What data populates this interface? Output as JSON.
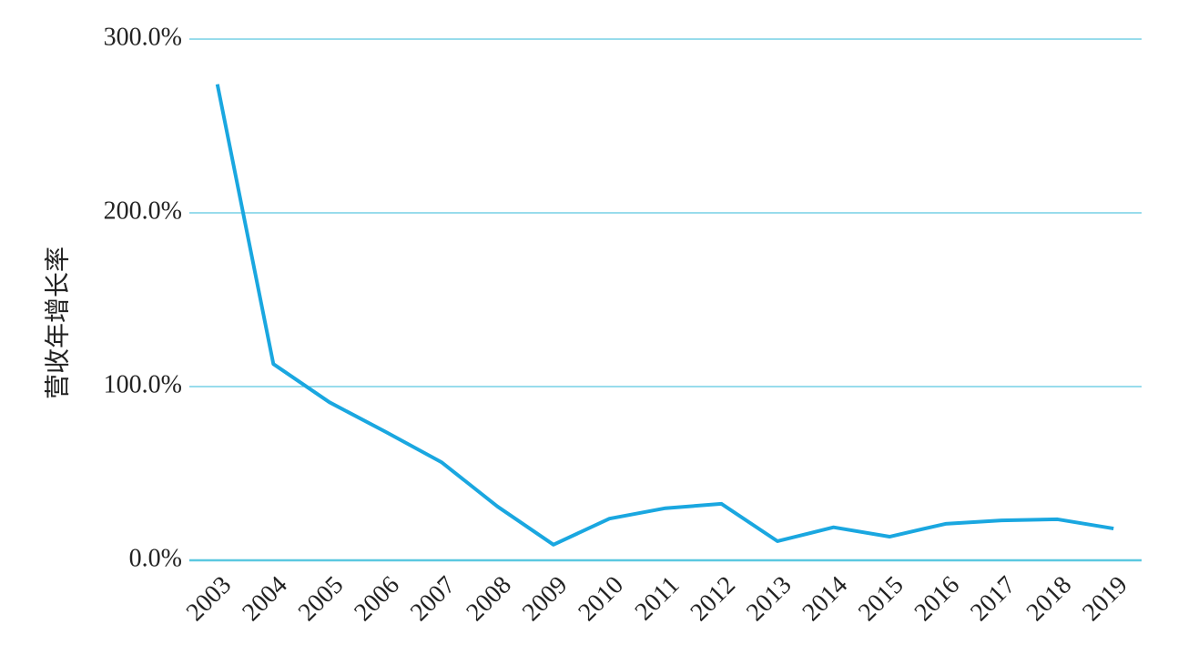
{
  "chart_data": {
    "type": "line",
    "y_label": "营收年增长率",
    "categories": [
      "2003",
      "2004",
      "2005",
      "2006",
      "2007",
      "2008",
      "2009",
      "2010",
      "2011",
      "2012",
      "2013",
      "2014",
      "2015",
      "2016",
      "2017",
      "2018",
      "2019"
    ],
    "values": [
      274,
      113,
      91,
      74,
      56.5,
      31,
      9,
      24,
      30,
      32.5,
      11,
      19,
      13.6,
      21,
      23,
      23.6,
      18.3
    ],
    "color": "#1aa7e0",
    "grid_color": "#5bc8e0",
    "ylim": [
      0,
      300
    ],
    "yticks": [
      {
        "value": 0,
        "label": "0.0%"
      },
      {
        "value": 100,
        "label": "100.0%"
      },
      {
        "value": 200,
        "label": "200.0%"
      },
      {
        "value": 300,
        "label": "300.0%"
      }
    ],
    "grid": true
  }
}
